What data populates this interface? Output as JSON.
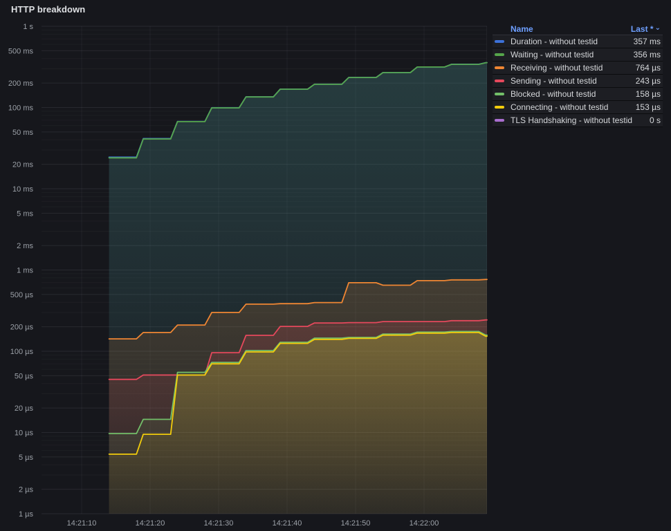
{
  "panel": {
    "title": "HTTP breakdown"
  },
  "legend": {
    "name_header": "Name",
    "sort_header": "Last *",
    "sort_icon": "⌄",
    "rows": [
      {
        "name": "Duration - without testid",
        "value": "357 ms",
        "color": "#3D71D9"
      },
      {
        "name": "Waiting - without testid",
        "value": "356 ms",
        "color": "#56A64B"
      },
      {
        "name": "Receiving - without testid",
        "value": "764 µs",
        "color": "#EF8633"
      },
      {
        "name": "Sending - without testid",
        "value": "243 µs",
        "color": "#E5485C"
      },
      {
        "name": "Blocked - without testid",
        "value": "158 µs",
        "color": "#73BF69"
      },
      {
        "name": "Connecting - without testid",
        "value": "153 µs",
        "color": "#F2CC0C"
      },
      {
        "name": "TLS Handshaking - without testid",
        "value": "0 s",
        "color": "#A96ECF"
      }
    ]
  },
  "chart_data": {
    "type": "line",
    "title": "HTTP breakdown",
    "legend_position": "right-table",
    "grid": true,
    "x_axis": {
      "unit": "time of day",
      "ticks": [
        {
          "label": "14:21:10",
          "t": 10
        },
        {
          "label": "14:21:20",
          "t": 20
        },
        {
          "label": "14:21:30",
          "t": 30
        },
        {
          "label": "14:21:40",
          "t": 40
        },
        {
          "label": "14:21:50",
          "t": 50
        },
        {
          "label": "14:22:00",
          "t": 60
        }
      ],
      "time_base": "seconds after 14:21:00",
      "data_range_s": [
        14,
        69
      ]
    },
    "y_axis": {
      "scale": "log10",
      "unit": "seconds",
      "range": [
        1e-06,
        1
      ],
      "ticks": [
        {
          "label": "1 s",
          "v": 1
        },
        {
          "label": "500 ms",
          "v": 0.5
        },
        {
          "label": "200 ms",
          "v": 0.2
        },
        {
          "label": "100 ms",
          "v": 0.1
        },
        {
          "label": "50 ms",
          "v": 0.05
        },
        {
          "label": "20 ms",
          "v": 0.02
        },
        {
          "label": "10 ms",
          "v": 0.01
        },
        {
          "label": "5 ms",
          "v": 0.005
        },
        {
          "label": "2 ms",
          "v": 0.002
        },
        {
          "label": "1 ms",
          "v": 0.001
        },
        {
          "label": "500 µs",
          "v": 0.0005
        },
        {
          "label": "200 µs",
          "v": 0.0002
        },
        {
          "label": "100 µs",
          "v": 0.0001
        },
        {
          "label": "50 µs",
          "v": 5e-05
        },
        {
          "label": "20 µs",
          "v": 2e-05
        },
        {
          "label": "10 µs",
          "v": 1e-05
        },
        {
          "label": "5 µs",
          "v": 5e-06
        },
        {
          "label": "2 µs",
          "v": 2e-06
        },
        {
          "label": "1 µs",
          "v": 1e-06
        }
      ]
    },
    "sample_times_s": [
      14,
      19,
      24,
      29,
      34,
      39,
      44,
      49,
      54,
      59,
      64,
      69
    ],
    "series": [
      {
        "name": "Duration - without testid",
        "color": "#3D71D9",
        "last": "357 ms",
        "values_s": [
          0.0245,
          0.0415,
          0.0675,
          0.0995,
          0.1355,
          0.1685,
          0.1935,
          0.2345,
          0.2695,
          0.3155,
          0.341,
          0.357
        ]
      },
      {
        "name": "Waiting - without testid",
        "color": "#56A64B",
        "last": "356 ms",
        "values_s": [
          0.024,
          0.041,
          0.067,
          0.099,
          0.135,
          0.168,
          0.193,
          0.234,
          0.269,
          0.315,
          0.34,
          0.356
        ]
      },
      {
        "name": "Receiving - without testid",
        "color": "#EF8633",
        "last": "764 µs",
        "values_s": [
          0.000142,
          0.00017,
          0.00021,
          0.0003,
          0.00038,
          0.000385,
          0.000397,
          0.000697,
          0.00065,
          0.00074,
          0.000755,
          0.000764
        ]
      },
      {
        "name": "Sending - without testid",
        "color": "#E5485C",
        "last": "243 µs",
        "values_s": [
          4.5e-05,
          5.1e-05,
          5.1e-05,
          9.6e-05,
          0.000157,
          0.000202,
          0.000223,
          0.000225,
          0.000232,
          0.000232,
          0.000238,
          0.000243
        ]
      },
      {
        "name": "Blocked - without testid",
        "color": "#73BF69",
        "last": "158 µs",
        "values_s": [
          9.7e-06,
          1.45e-05,
          5.5e-05,
          7.3e-05,
          0.000102,
          0.000129,
          0.000145,
          0.000148,
          0.000163,
          0.000172,
          0.000175,
          0.000158
        ]
      },
      {
        "name": "Connecting - without testid",
        "color": "#F2CC0C",
        "last": "153 µs",
        "values_s": [
          5.4e-06,
          9.5e-06,
          5.1e-05,
          7e-05,
          9.8e-05,
          0.000125,
          0.00014,
          0.000144,
          0.000158,
          0.000167,
          0.00017,
          0.000153
        ]
      },
      {
        "name": "TLS Handshaking - without testid",
        "color": "#A96ECF",
        "last": "0 s",
        "values_s": [
          0,
          0,
          0,
          0,
          0,
          0,
          0,
          0,
          0,
          0,
          0,
          0
        ]
      }
    ]
  }
}
